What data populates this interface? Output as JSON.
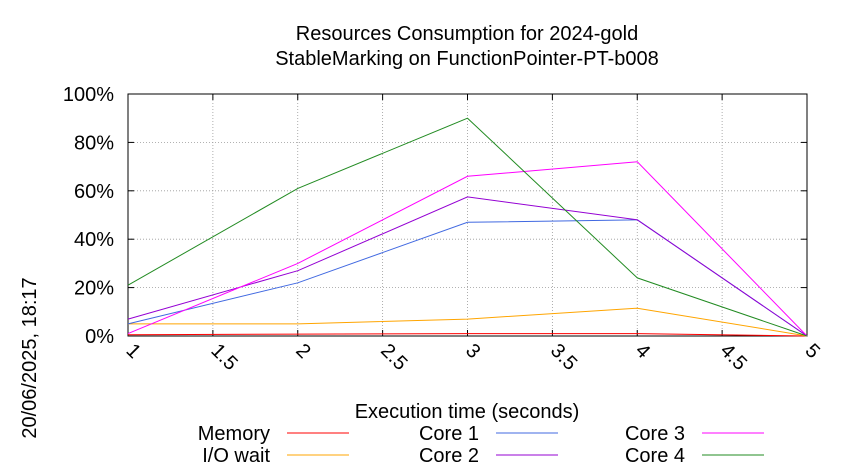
{
  "chart_data": {
    "type": "line",
    "title": "Resources Consumption for 2024-gold",
    "subtitle": "StableMarking on FunctionPointer-PT-b008",
    "xlabel": "Execution time (seconds)",
    "ylabel": "",
    "side_label": "20/06/2025, 18:17",
    "xlim": [
      1,
      5
    ],
    "ylim": [
      0,
      100
    ],
    "x_ticks": [
      "1",
      "1.5",
      "2",
      "2.5",
      "3",
      "3.5",
      "4",
      "4.5",
      "5"
    ],
    "y_ticks": [
      "0%",
      "20%",
      "40%",
      "60%",
      "80%",
      "100%"
    ],
    "grid": true,
    "legend_position": "bottom",
    "x": [
      1,
      2,
      3,
      4,
      5
    ],
    "series": [
      {
        "name": "Memory",
        "color": "#ff0000",
        "values": [
          0.5,
          0.8,
          1.0,
          1.0,
          0
        ]
      },
      {
        "name": "I/O wait",
        "color": "#ffa500",
        "values": [
          5,
          5,
          7,
          11.5,
          0
        ]
      },
      {
        "name": "Core 1",
        "color": "#4169e1",
        "values": [
          5,
          22,
          47,
          48,
          0
        ]
      },
      {
        "name": "Core 2",
        "color": "#9400d3",
        "values": [
          7,
          27,
          57.5,
          48,
          0
        ]
      },
      {
        "name": "Core 3",
        "color": "#ff00ff",
        "values": [
          1,
          30,
          66,
          72,
          0
        ]
      },
      {
        "name": "Core 4",
        "color": "#228b22",
        "values": [
          21,
          61,
          90,
          24,
          0
        ]
      }
    ]
  }
}
